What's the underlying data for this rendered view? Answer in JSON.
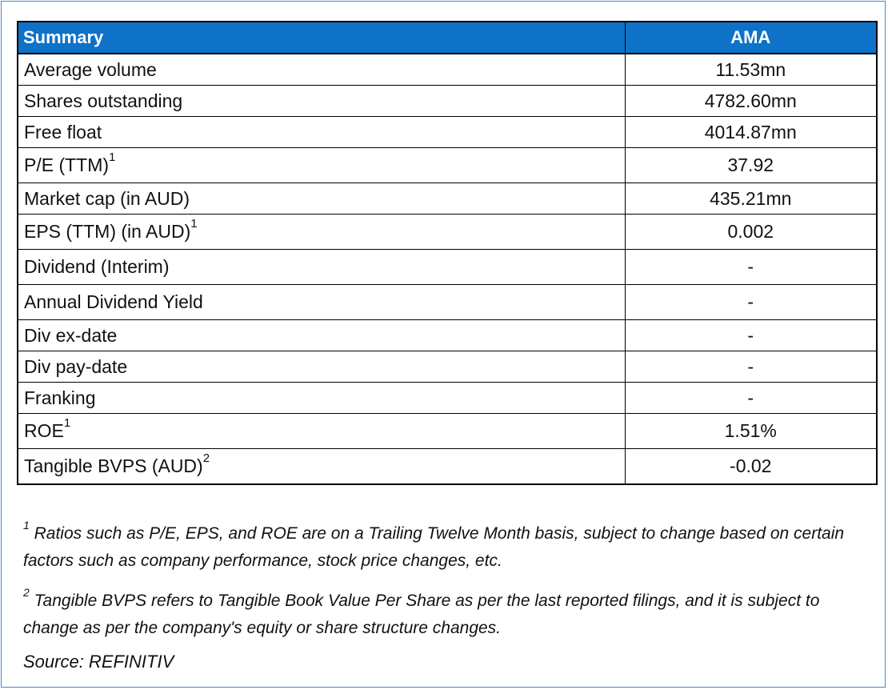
{
  "table": {
    "header": {
      "label": "Summary",
      "ticker": "AMA"
    },
    "rows": [
      {
        "label": "Average volume",
        "sup": "",
        "value": "11.53mn"
      },
      {
        "label": "Shares outstanding",
        "sup": "",
        "value": "4782.60mn"
      },
      {
        "label": "Free float",
        "sup": "",
        "value": "4014.87mn"
      },
      {
        "label": "P/E (TTM)",
        "sup": "1",
        "value": "37.92"
      },
      {
        "label": "Market cap (in AUD)",
        "sup": "",
        "value": "435.21mn"
      },
      {
        "label": "EPS (TTM) (in AUD)",
        "sup": "1",
        "value": "0.002"
      },
      {
        "label": "Dividend (Interim)",
        "sup": "",
        "value": "-"
      },
      {
        "label": "Annual Dividend Yield",
        "sup": "",
        "value": "-"
      },
      {
        "label": "Div ex-date",
        "sup": "",
        "value": "-"
      },
      {
        "label": "Div pay-date",
        "sup": "",
        "value": "-"
      },
      {
        "label": "Franking",
        "sup": "",
        "value": "-"
      },
      {
        "label": "ROE",
        "sup": "1",
        "value": "1.51%"
      },
      {
        "label": "Tangible BVPS (AUD)",
        "sup": "2",
        "value": "-0.02"
      }
    ]
  },
  "notes": {
    "note1": {
      "marker": "1",
      "text": " Ratios such as P/E, EPS,  and ROE are on a Trailing Twelve Month basis, subject to change based on certain factors such as company performance, stock price changes, etc."
    },
    "note2": {
      "marker": "2",
      "text": " Tangible BVPS refers to Tangible Book Value Per Share as per the last reported filings, and it is subject to change as per the company's equity or share structure changes."
    },
    "source": "Source: REFINITIV"
  }
}
